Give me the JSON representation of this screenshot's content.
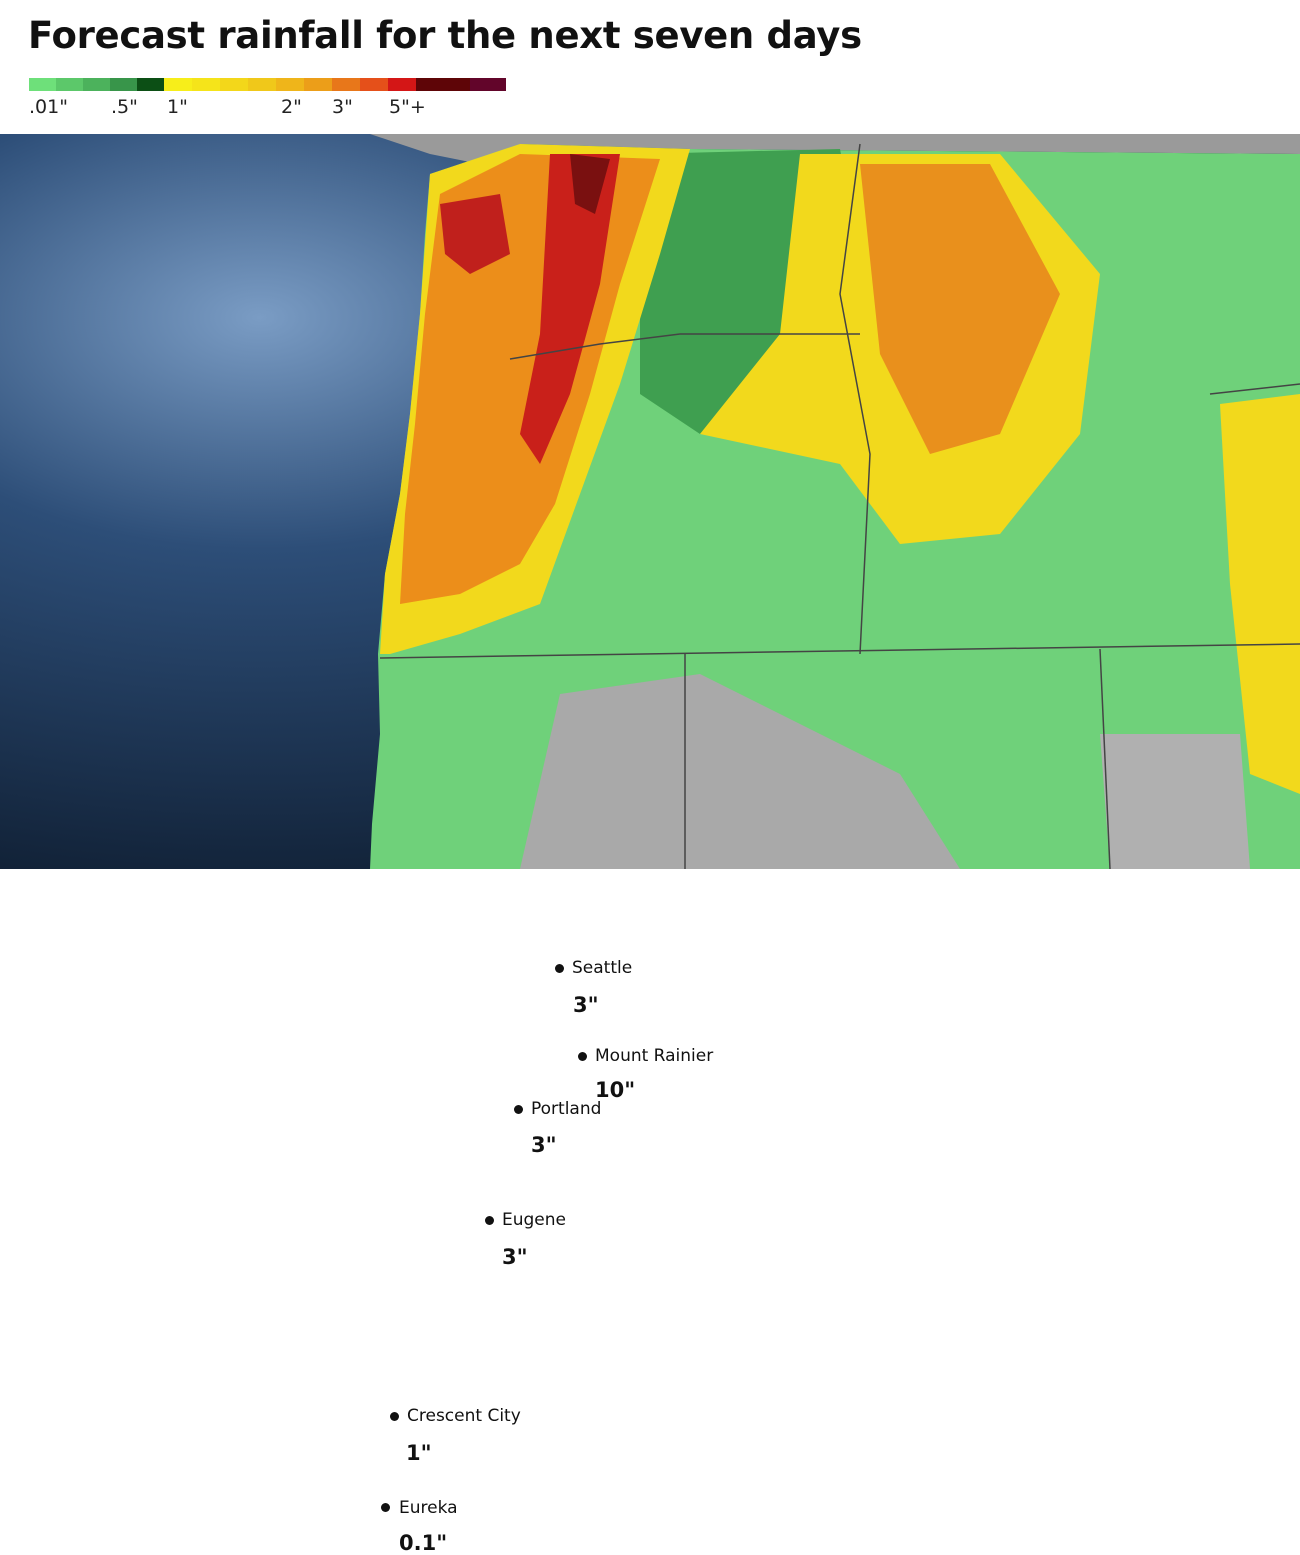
{
  "title": "Forecast rainfall for the next seven days",
  "legend": {
    "colors": [
      "#6ee07a",
      "#5cc86a",
      "#4cb25c",
      "#38954a",
      "#0c4f15",
      "#f7ee1a",
      "#f5e41a",
      "#f3d71a",
      "#f0c81a",
      "#efb51a",
      "#ec9e19",
      "#e8771a",
      "#e5501a",
      "#d41616",
      "#5e0507",
      "#62052a"
    ],
    "labels": [
      ".01\"",
      ".5\"",
      "1\"",
      "2\"",
      "3\"",
      "5\"+"
    ]
  },
  "cities": [
    {
      "name": "Seattle",
      "amount": "3\""
    },
    {
      "name": "Mount Rainier",
      "amount": "10\""
    },
    {
      "name": "Portland",
      "amount": "3\""
    },
    {
      "name": "Eugene",
      "amount": "3\""
    },
    {
      "name": "Crescent City",
      "amount": "1\""
    },
    {
      "name": "Eureka",
      "amount": "0.1\""
    }
  ]
}
